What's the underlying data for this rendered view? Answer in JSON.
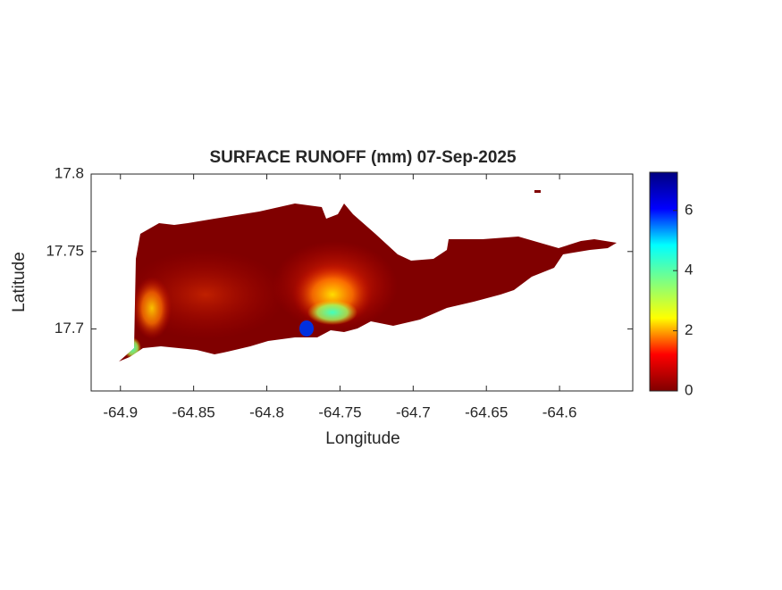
{
  "chart_data": {
    "type": "map",
    "title": "SURFACE RUNOFF (mm) 07-Sep-2025",
    "x_label": "Longitude",
    "y_label": "Latitude",
    "xlim": [
      -64.92,
      -64.55
    ],
    "xticks": [
      -64.9,
      -64.85,
      -64.8,
      -64.75,
      -64.7,
      -64.65,
      -64.6
    ],
    "ylim": [
      17.66,
      17.8
    ],
    "yticks": [
      17.7,
      17.75,
      17.8
    ],
    "colorbar": {
      "colormap": "jet",
      "clim": [
        0,
        7.27
      ],
      "ticks": [
        0,
        2,
        4,
        6
      ]
    }
  }
}
